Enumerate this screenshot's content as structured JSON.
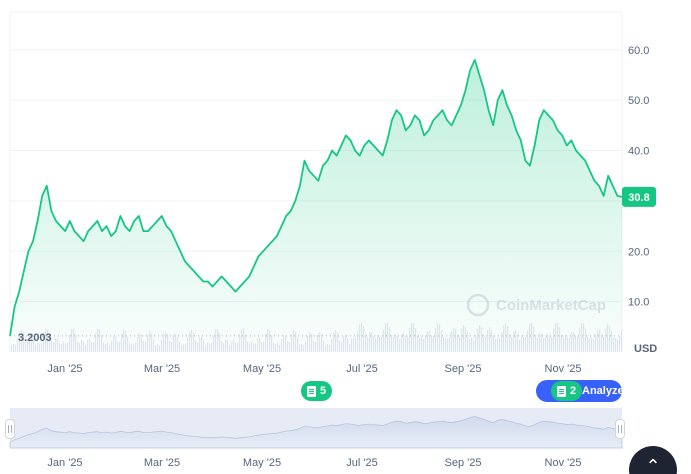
{
  "chart_data": {
    "type": "area",
    "x_labels": [
      "Jan '25",
      "Mar '25",
      "May '25",
      "Jul '25",
      "Sep '25",
      "Nov '25"
    ],
    "y_ticks": [
      10.0,
      20.0,
      30.0,
      40.0,
      50.0,
      60.0
    ],
    "y_tick_labels": [
      "10.0",
      "20.0",
      "30.0",
      "40.0",
      "50.0",
      "60.0"
    ],
    "ylim": [
      0,
      67.5
    ],
    "currency": "USD",
    "current_price_label": "30.8",
    "current_price": 30.8,
    "baseline_label": "3.2003",
    "baseline_value": 3.2003,
    "watermark": "CoinMarketCap",
    "line_color": "#16c784",
    "axis_text_color": "#58667e",
    "series": [
      {
        "values": [
          3.2,
          9,
          12,
          16,
          20,
          22,
          26,
          31,
          33,
          28,
          26,
          25,
          24,
          26,
          24,
          23,
          22,
          24,
          25,
          26,
          24,
          25,
          23,
          24,
          27,
          25,
          24,
          26,
          27,
          24,
          24,
          25,
          26,
          27,
          25,
          24,
          22,
          20,
          18,
          17,
          16,
          15,
          14,
          14,
          13,
          14,
          15,
          14,
          13,
          12,
          13,
          14,
          15,
          17,
          19,
          20,
          21,
          22,
          23,
          25,
          27,
          28,
          30,
          33,
          38,
          36,
          35,
          34,
          37,
          38,
          40,
          39,
          41,
          43,
          42,
          40,
          39,
          41,
          42,
          41,
          40,
          39,
          42,
          46,
          48,
          47,
          44,
          45,
          47,
          46,
          43,
          44,
          46,
          47,
          48,
          46,
          45,
          47,
          49,
          52,
          56,
          58,
          55,
          52,
          48,
          45,
          50,
          52,
          49,
          47,
          44,
          42,
          38,
          37,
          41,
          46,
          48,
          47,
          46,
          44,
          43,
          41,
          42,
          40,
          39,
          38,
          36,
          34,
          33,
          31,
          35,
          33,
          31,
          30.8
        ]
      }
    ],
    "annotations": [
      {
        "label": "5"
      },
      {
        "label": "2"
      }
    ],
    "analyze_label": "Analyze"
  },
  "icons": {
    "note_icon": "document-icon",
    "analyze_chevron": "chevron-right-icon",
    "scroll_top": "chevron-up-icon"
  }
}
